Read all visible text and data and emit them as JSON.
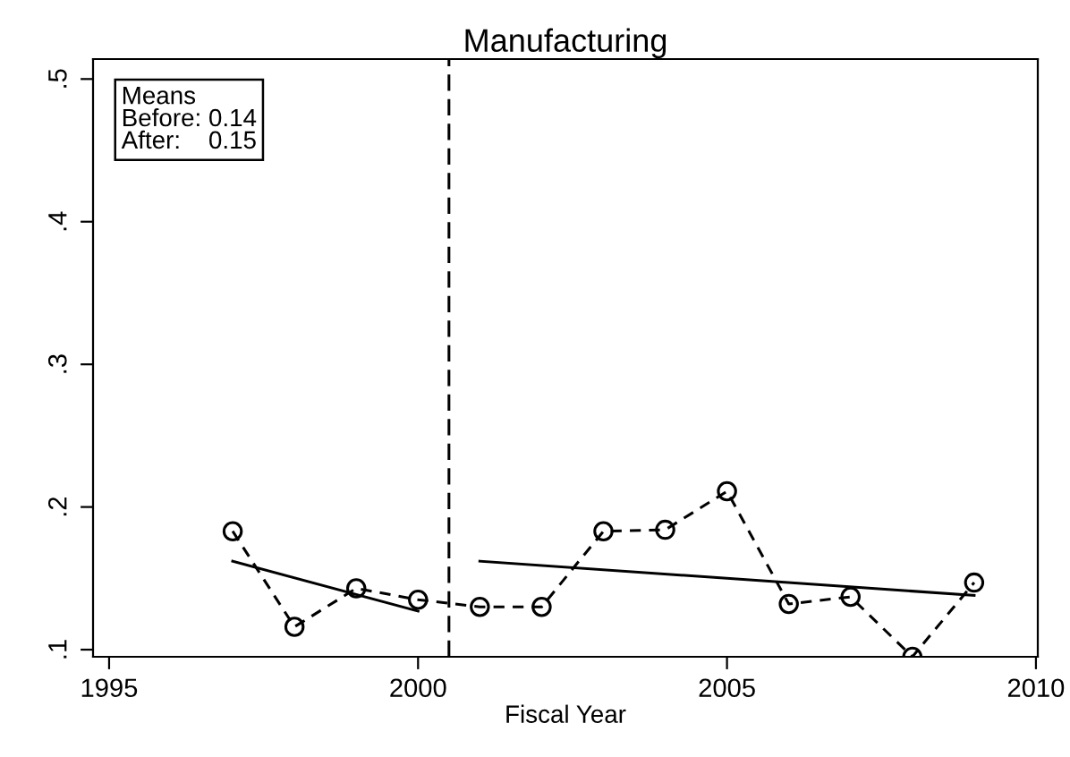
{
  "chart_data": {
    "type": "line",
    "title": "Manufacturing",
    "xlabel": "Fiscal Year",
    "x": [
      1997,
      1998,
      1999,
      2000,
      2001,
      2002,
      2003,
      2004,
      2005,
      2006,
      2007,
      2008,
      2009
    ],
    "series": [
      {
        "color": "#000000",
        "marker": "circle",
        "line_style": "dashed",
        "values": [
          0.183,
          0.116,
          0.143,
          0.135,
          0.13,
          0.13,
          0.183,
          0.184,
          0.211,
          0.132,
          0.137,
          0.095,
          0.147
        ]
      },
      {
        "color": "#000000",
        "marker": "none",
        "line_style": "solid",
        "x": [
          1997,
          2000
        ],
        "values": [
          0.162,
          0.127
        ]
      },
      {
        "color": "#000000",
        "marker": "none",
        "line_style": "solid",
        "x": [
          2001,
          2009
        ],
        "values": [
          0.162,
          0.138
        ]
      }
    ],
    "xlim": [
      1994.74,
      2010.03
    ],
    "xticks": [
      1995,
      2000,
      2005,
      2010
    ],
    "ylim": [
      0.095,
      0.514
    ],
    "yticks": [
      {
        "value": 0.1,
        "label": ".1"
      },
      {
        "value": 0.2,
        "label": ".2"
      },
      {
        "value": 0.3,
        "label": ".3"
      },
      {
        "value": 0.4,
        "label": ".4"
      },
      {
        "value": 0.5,
        "label": ".5"
      }
    ],
    "ref_lines": [
      {
        "axis": "x",
        "value": 2000.5,
        "line_style": "dashed",
        "color": "#000000"
      }
    ],
    "annotations": [
      "Means\nBefore: 0.14\nAfter:    0.15"
    ],
    "grid": false,
    "legend": false
  }
}
